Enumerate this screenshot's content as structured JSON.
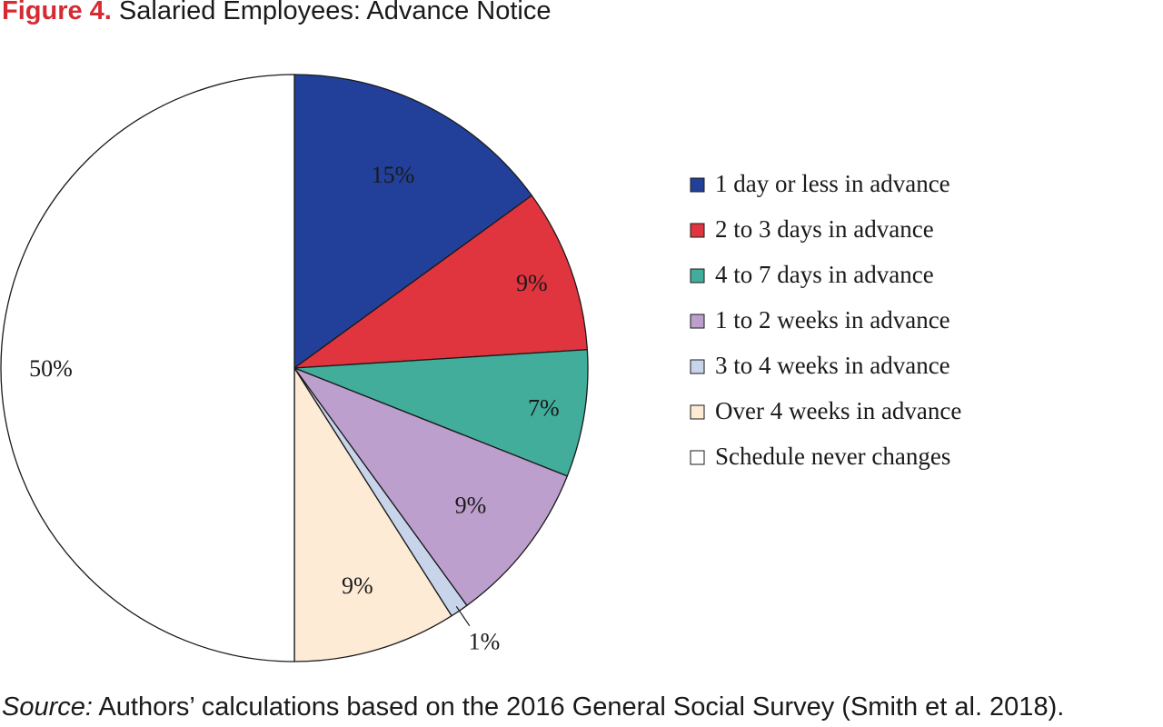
{
  "title": {
    "figure_label": "Figure 4.",
    "text": "Salaried Employees: Advance Notice"
  },
  "source": {
    "label": "Source:",
    "text": "Authors’ calculations based on the 2016 General Social Survey (Smith et al. 2018)."
  },
  "chart_data": {
    "type": "pie",
    "title": "Salaried Employees: Advance Notice",
    "legend_position": "right",
    "slices": [
      {
        "label": "1 day or less in advance",
        "value": 15,
        "value_label": "15%",
        "color": "#22409a",
        "label_color": "#ffffff"
      },
      {
        "label": "2 to 3 days in advance",
        "value": 9,
        "value_label": "9%",
        "color": "#e0343e",
        "label_color": "#1a1a1a"
      },
      {
        "label": "4 to 7 days in advance",
        "value": 7,
        "value_label": "7%",
        "color": "#41ad9a",
        "label_color": "#1a1a1a"
      },
      {
        "label": "1 to 2 weeks in advance",
        "value": 9,
        "value_label": "9%",
        "color": "#bd9fcd",
        "label_color": "#1a1a1a"
      },
      {
        "label": "3 to 4 weeks in advance",
        "value": 1,
        "value_label": "1%",
        "color": "#c8d4ea",
        "label_color": "#1a1a1a"
      },
      {
        "label": "Over 4 weeks in advance",
        "value": 9,
        "value_label": "9%",
        "color": "#fdebd6",
        "label_color": "#1a1a1a"
      },
      {
        "label": "Schedule never changes",
        "value": 50,
        "value_label": "50%",
        "color": "#ffffff",
        "label_color": "#1a1a1a"
      }
    ]
  }
}
